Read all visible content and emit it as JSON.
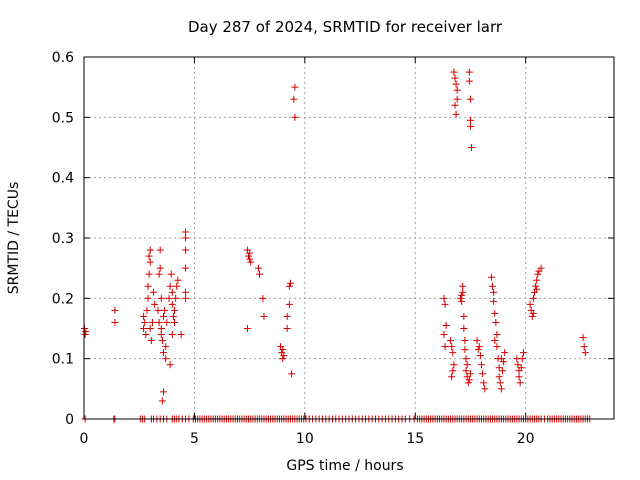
{
  "chart_data": {
    "type": "scatter",
    "title": "Day 287 of 2024, SRMTID for receiver larr",
    "xlabel": "GPS time / hours",
    "ylabel": "SRMTID / TECUs",
    "xlim": [
      0,
      24
    ],
    "ylim": [
      0,
      0.6
    ],
    "xticks": [
      0,
      5,
      10,
      15,
      20
    ],
    "xtick_labels": [
      "0",
      "5",
      "10",
      "15",
      "20"
    ],
    "yticks": [
      0,
      0.1,
      0.2,
      0.3,
      0.4,
      0.5,
      0.6
    ],
    "ytick_labels": [
      "0",
      "0.1",
      "0.2",
      "0.3",
      "0.4",
      "0.5",
      "0.6"
    ],
    "grid": true,
    "marker": "+",
    "series": [
      {
        "name": "SRMTID",
        "color": "#d40000",
        "points": [
          [
            0.02,
            0.15
          ],
          [
            0.05,
            0.14
          ],
          [
            0.08,
            0.145
          ],
          [
            1.4,
            0.18
          ],
          [
            1.4,
            0.16
          ],
          [
            2.7,
            0.17
          ],
          [
            2.7,
            0.15
          ],
          [
            2.75,
            0.16
          ],
          [
            2.8,
            0.14
          ],
          [
            2.85,
            0.18
          ],
          [
            2.9,
            0.2
          ],
          [
            2.9,
            0.22
          ],
          [
            2.95,
            0.24
          ],
          [
            3.0,
            0.26
          ],
          [
            3.0,
            0.28
          ],
          [
            2.95,
            0.27
          ],
          [
            3.0,
            0.15
          ],
          [
            3.05,
            0.13
          ],
          [
            3.1,
            0.16
          ],
          [
            3.15,
            0.21
          ],
          [
            3.2,
            0.19
          ],
          [
            3.35,
            0.18
          ],
          [
            3.4,
            0.24
          ],
          [
            3.45,
            0.25
          ],
          [
            3.45,
            0.28
          ],
          [
            3.4,
            0.16
          ],
          [
            3.5,
            0.15
          ],
          [
            3.5,
            0.14
          ],
          [
            3.55,
            0.13
          ],
          [
            3.6,
            0.11
          ],
          [
            3.6,
            0.17
          ],
          [
            3.65,
            0.18
          ],
          [
            3.7,
            0.1
          ],
          [
            3.7,
            0.12
          ],
          [
            3.75,
            0.16
          ],
          [
            3.6,
            0.045
          ],
          [
            3.55,
            0.03
          ],
          [
            3.5,
            0.2
          ],
          [
            3.85,
            0.2
          ],
          [
            3.9,
            0.22
          ],
          [
            3.95,
            0.24
          ],
          [
            4.0,
            0.21
          ],
          [
            4.0,
            0.19
          ],
          [
            4.05,
            0.17
          ],
          [
            4.1,
            0.16
          ],
          [
            4.1,
            0.18
          ],
          [
            4.15,
            0.2
          ],
          [
            4.2,
            0.22
          ],
          [
            4.25,
            0.23
          ],
          [
            4.0,
            0.14
          ],
          [
            3.9,
            0.09
          ],
          [
            4.4,
            0.14
          ],
          [
            4.6,
            0.31
          ],
          [
            4.6,
            0.3
          ],
          [
            4.6,
            0.28
          ],
          [
            4.6,
            0.25
          ],
          [
            4.6,
            0.21
          ],
          [
            4.6,
            0.2
          ],
          [
            7.4,
            0.28
          ],
          [
            7.45,
            0.27
          ],
          [
            7.5,
            0.265
          ],
          [
            7.55,
            0.26
          ],
          [
            7.5,
            0.275
          ],
          [
            7.4,
            0.15
          ],
          [
            7.9,
            0.25
          ],
          [
            7.95,
            0.24
          ],
          [
            8.1,
            0.2
          ],
          [
            8.15,
            0.17
          ],
          [
            8.9,
            0.12
          ],
          [
            8.95,
            0.11
          ],
          [
            9.0,
            0.1
          ],
          [
            9.0,
            0.115
          ],
          [
            9.05,
            0.105
          ],
          [
            9.2,
            0.17
          ],
          [
            9.2,
            0.15
          ],
          [
            9.3,
            0.19
          ],
          [
            9.3,
            0.22
          ],
          [
            9.35,
            0.225
          ],
          [
            9.4,
            0.075
          ],
          [
            9.55,
            0.55
          ],
          [
            9.5,
            0.53
          ],
          [
            9.55,
            0.5
          ],
          [
            16.3,
            0.2
          ],
          [
            16.35,
            0.19
          ],
          [
            16.3,
            0.14
          ],
          [
            16.35,
            0.12
          ],
          [
            16.4,
            0.155
          ],
          [
            16.6,
            0.13
          ],
          [
            16.65,
            0.12
          ],
          [
            16.7,
            0.11
          ],
          [
            16.75,
            0.09
          ],
          [
            16.7,
            0.08
          ],
          [
            16.65,
            0.07
          ],
          [
            16.75,
            0.575
          ],
          [
            16.8,
            0.565
          ],
          [
            16.85,
            0.555
          ],
          [
            16.9,
            0.545
          ],
          [
            16.8,
            0.52
          ],
          [
            16.85,
            0.505
          ],
          [
            16.9,
            0.53
          ],
          [
            17.05,
            0.2
          ],
          [
            17.1,
            0.195
          ],
          [
            17.1,
            0.205
          ],
          [
            17.15,
            0.21
          ],
          [
            17.15,
            0.22
          ],
          [
            17.2,
            0.17
          ],
          [
            17.2,
            0.15
          ],
          [
            17.25,
            0.13
          ],
          [
            17.25,
            0.115
          ],
          [
            17.3,
            0.1
          ],
          [
            17.3,
            0.08
          ],
          [
            17.35,
            0.07
          ],
          [
            17.4,
            0.06
          ],
          [
            17.45,
            0.065
          ],
          [
            17.5,
            0.075
          ],
          [
            17.35,
            0.09
          ],
          [
            17.45,
            0.575
          ],
          [
            17.45,
            0.56
          ],
          [
            17.5,
            0.53
          ],
          [
            17.5,
            0.495
          ],
          [
            17.5,
            0.485
          ],
          [
            17.55,
            0.45
          ],
          [
            17.8,
            0.13
          ],
          [
            17.85,
            0.115
          ],
          [
            17.9,
            0.12
          ],
          [
            17.95,
            0.105
          ],
          [
            18.0,
            0.09
          ],
          [
            18.05,
            0.075
          ],
          [
            18.1,
            0.06
          ],
          [
            18.15,
            0.05
          ],
          [
            18.45,
            0.235
          ],
          [
            18.5,
            0.22
          ],
          [
            18.55,
            0.21
          ],
          [
            18.55,
            0.195
          ],
          [
            18.6,
            0.175
          ],
          [
            18.65,
            0.16
          ],
          [
            18.7,
            0.14
          ],
          [
            18.7,
            0.12
          ],
          [
            18.75,
            0.1
          ],
          [
            18.8,
            0.085
          ],
          [
            18.8,
            0.07
          ],
          [
            18.85,
            0.06
          ],
          [
            18.9,
            0.05
          ],
          [
            18.95,
            0.08
          ],
          [
            19.0,
            0.095
          ],
          [
            19.05,
            0.11
          ],
          [
            18.6,
            0.13
          ],
          [
            18.9,
            0.1
          ],
          [
            19.6,
            0.1
          ],
          [
            19.65,
            0.09
          ],
          [
            19.7,
            0.08
          ],
          [
            19.7,
            0.07
          ],
          [
            19.75,
            0.06
          ],
          [
            19.8,
            0.085
          ],
          [
            19.85,
            0.1
          ],
          [
            19.9,
            0.11
          ],
          [
            20.2,
            0.19
          ],
          [
            20.25,
            0.18
          ],
          [
            20.3,
            0.17
          ],
          [
            20.35,
            0.2
          ],
          [
            20.4,
            0.21
          ],
          [
            20.45,
            0.22
          ],
          [
            20.5,
            0.215
          ],
          [
            20.5,
            0.23
          ],
          [
            20.55,
            0.24
          ],
          [
            20.6,
            0.245
          ],
          [
            20.7,
            0.25
          ],
          [
            20.35,
            0.175
          ],
          [
            22.6,
            0.135
          ],
          [
            22.65,
            0.12
          ],
          [
            22.7,
            0.11
          ]
        ],
        "zero_points": [
          0.05,
          1.35,
          1.4,
          2.55,
          2.65,
          2.75,
          3.05,
          3.15,
          3.3,
          3.45,
          3.6,
          3.75,
          4.0,
          4.1,
          4.2,
          4.3,
          4.45,
          4.6,
          4.75,
          4.95,
          5.05,
          5.15,
          5.25,
          5.35,
          5.45,
          5.55,
          5.65,
          5.75,
          5.85,
          5.95,
          6.05,
          6.15,
          6.25,
          6.35,
          6.45,
          6.55,
          6.65,
          6.75,
          6.85,
          6.95,
          7.05,
          7.15,
          7.25,
          7.35,
          7.45,
          7.55,
          7.65,
          7.75,
          7.85,
          7.95,
          8.05,
          8.15,
          8.25,
          8.35,
          8.45,
          8.55,
          8.65,
          8.75,
          8.85,
          8.95,
          9.05,
          9.15,
          9.25,
          9.35,
          9.45,
          9.55,
          9.65,
          9.75,
          9.85,
          9.95,
          10.05,
          10.2,
          10.35,
          10.5,
          10.65,
          10.8,
          10.95,
          11.1,
          11.25,
          11.4,
          11.55,
          11.7,
          11.85,
          12.0,
          12.15,
          12.3,
          12.45,
          12.6,
          12.75,
          12.9,
          13.05,
          13.2,
          13.35,
          13.5,
          13.65,
          13.8,
          13.95,
          14.1,
          14.25,
          14.4,
          14.55,
          14.75,
          14.95,
          15.1,
          15.2,
          15.3,
          15.4,
          15.5,
          15.6,
          15.7,
          15.8,
          15.9,
          16.0,
          16.1,
          16.2,
          16.3,
          16.4,
          16.5,
          16.6,
          16.7,
          16.8,
          16.9,
          17.0,
          17.1,
          17.2,
          17.3,
          17.4,
          17.5,
          17.6,
          17.7,
          17.8,
          17.9,
          18.0,
          18.1,
          18.2,
          18.3,
          18.4,
          18.5,
          18.6,
          18.7,
          18.8,
          18.9,
          19.0,
          19.1,
          19.2,
          19.3,
          19.4,
          19.5,
          19.6,
          19.7,
          19.8,
          19.9,
          20.0,
          20.1,
          20.2,
          20.3,
          20.4,
          20.5,
          20.6,
          20.7,
          20.85,
          21.0,
          21.1,
          21.2,
          21.3,
          21.4,
          21.5,
          21.6,
          21.7,
          21.8,
          21.9,
          22.0,
          22.1,
          22.2,
          22.3,
          22.4,
          22.5,
          22.6,
          22.7,
          22.8,
          22.9
        ]
      }
    ]
  }
}
